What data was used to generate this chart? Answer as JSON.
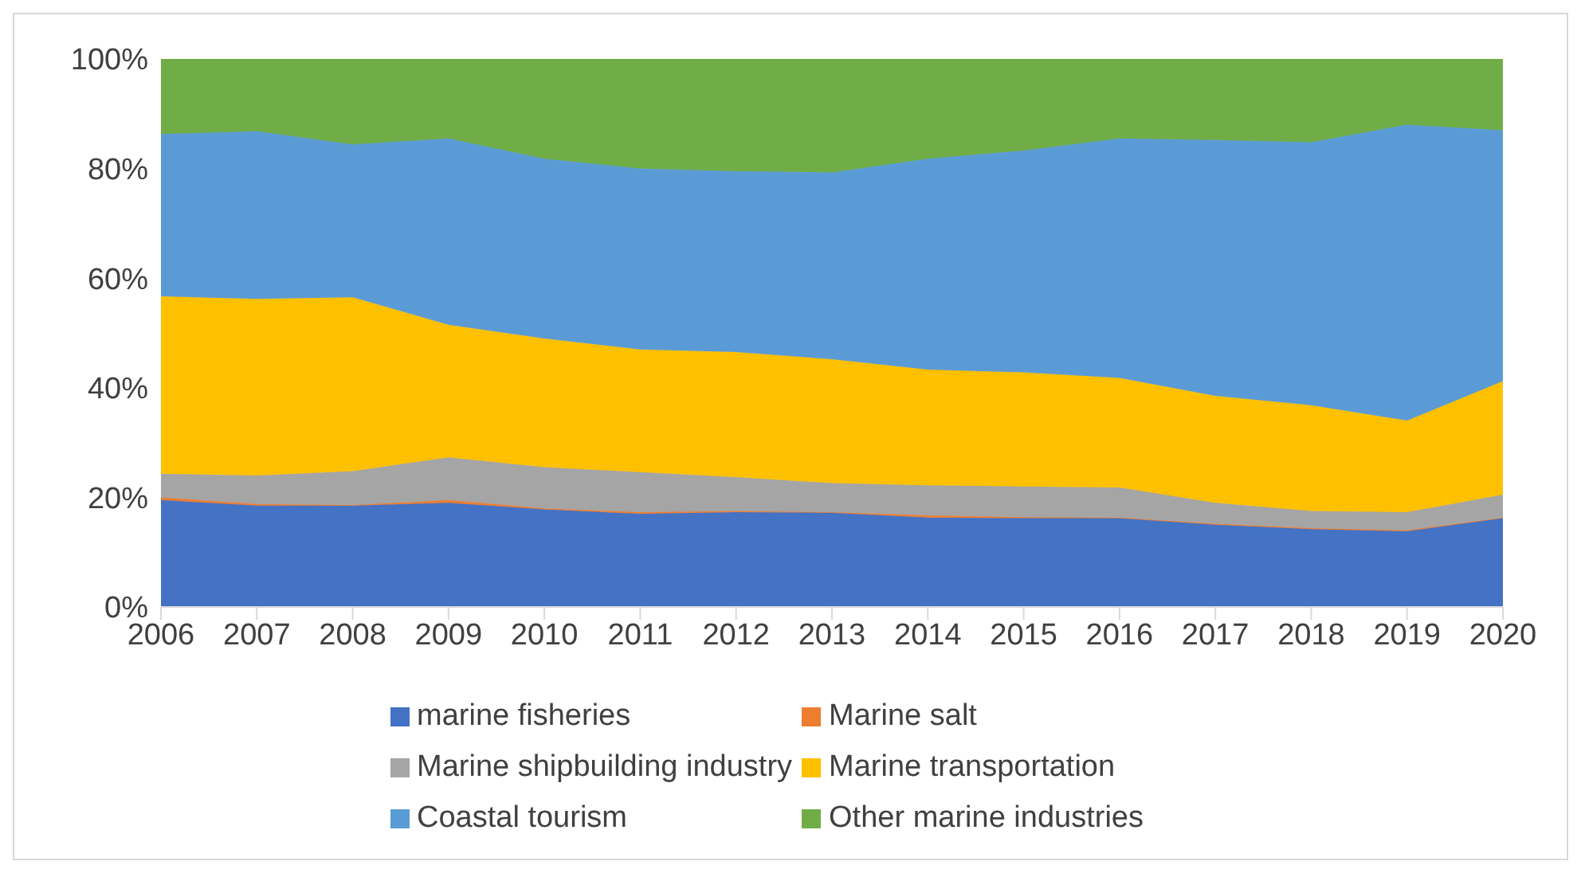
{
  "chart_data": {
    "type": "area",
    "stacked": true,
    "categories": [
      "2006",
      "2007",
      "2008",
      "2009",
      "2010",
      "2011",
      "2012",
      "2013",
      "2014",
      "2015",
      "2016",
      "2017",
      "2018",
      "2019",
      "2020"
    ],
    "ylim": [
      0,
      100
    ],
    "yticks": [
      {
        "value": 0,
        "label": "0%"
      },
      {
        "value": 20,
        "label": "20%"
      },
      {
        "value": 40,
        "label": "40%"
      },
      {
        "value": 60,
        "label": "60%"
      },
      {
        "value": 80,
        "label": "80%"
      },
      {
        "value": 100,
        "label": "100%"
      }
    ],
    "legend": "bottom",
    "series": [
      {
        "name": "marine fisheries",
        "color": "#4472c4",
        "values": [
          19.5,
          18.5,
          18.5,
          19,
          17.8,
          17,
          17.3,
          17.2,
          16.3,
          16.2,
          16.2,
          15,
          14.2,
          13.8,
          16.2
        ]
      },
      {
        "name": "Marine salt",
        "color": "#ed7d31",
        "values": [
          0.5,
          0.3,
          0.1,
          0.5,
          0.2,
          0.3,
          0.2,
          0.1,
          0.4,
          0.2,
          0.1,
          0.2,
          0.2,
          0.2,
          0.1
        ]
      },
      {
        "name": "Marine shipbuilding industry",
        "color": "#a5a5a5",
        "values": [
          4.3,
          5.2,
          6.2,
          7.8,
          7.5,
          7.3,
          6.2,
          5.3,
          5.5,
          5.6,
          5.5,
          3.8,
          3.1,
          3.3,
          4.2
        ]
      },
      {
        "name": "Marine transportation",
        "color": "#ffc000",
        "values": [
          32.4,
          32.2,
          31.7,
          24.2,
          23.5,
          22.4,
          22.8,
          22.6,
          21.1,
          20.8,
          20.0,
          19.5,
          19.3,
          16.7,
          20.7
        ]
      },
      {
        "name": "Coastal tourism",
        "color": "#5b9bd5",
        "values": [
          29.6,
          30.6,
          27.9,
          34.0,
          32.8,
          33.0,
          33.0,
          34.1,
          38.5,
          40.5,
          43.7,
          46.7,
          48.0,
          54.0,
          45.8
        ]
      },
      {
        "name": "Other marine industries",
        "color": "#70ad47",
        "values": [
          13.7,
          13.2,
          15.6,
          14.5,
          18.2,
          20,
          20.5,
          20.7,
          18.2,
          16.7,
          14.5,
          14.8,
          15.2,
          12,
          13
        ]
      }
    ]
  }
}
